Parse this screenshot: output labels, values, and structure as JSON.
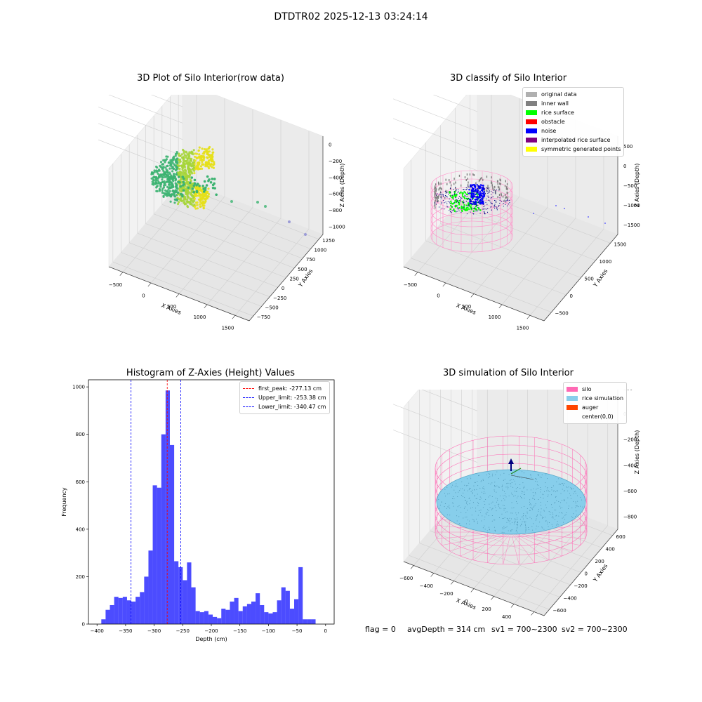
{
  "suptitle": "DTDTR02 2025-12-13 03:24:14",
  "footer": {
    "flag": "flag = 0",
    "avg": "avgDepth = 314 cm",
    "sv1": "sv1 = 700~2300",
    "sv2": "sv2 = 700~2300"
  },
  "chart_data": [
    {
      "type": "scatter",
      "title": "3D Plot of Silo Interior(row data)",
      "xlabel": "X Axies",
      "ylabel": "Y Axies",
      "zlabel": "Z Axies (Depth)",
      "xticks": [
        "−500",
        "0",
        "500",
        "1000",
        "1500"
      ],
      "yticks": [
        "−750",
        "−500",
        "−250",
        "0",
        "250",
        "500",
        "750",
        "1000",
        "1250"
      ],
      "zticks": [
        "0",
        "−200",
        "−400",
        "−600",
        "−800",
        "−1000"
      ],
      "colors": {
        "surface": "#3cb371",
        "top": "#e6e01a"
      }
    },
    {
      "type": "scatter",
      "title": "3D classify of Silo Interior",
      "xlabel": "X Axies",
      "ylabel": "Y Axies",
      "zlabel": "Z Axies (Depth)",
      "xticks": [
        "−500",
        "0",
        "500",
        "1000",
        "1500"
      ],
      "yticks": [
        "−500",
        "0",
        "500",
        "1000",
        "1500"
      ],
      "zticks": [
        "500",
        "0",
        "−500",
        "−1000",
        "−1500"
      ],
      "legend": [
        {
          "label": "original data",
          "color": "#b0b0b0"
        },
        {
          "label": "inner wall",
          "color": "#808080"
        },
        {
          "label": "rice surface",
          "color": "#00ff00"
        },
        {
          "label": "obstacle",
          "color": "#ff0000"
        },
        {
          "label": "noise",
          "color": "#0000ff"
        },
        {
          "label": "interpolated rice surface",
          "color": "#800080"
        },
        {
          "label": "symmetric generated points",
          "color": "#ffff00"
        }
      ]
    },
    {
      "type": "bar",
      "title": "Histogram of Z-Axies (Height) Values",
      "xlabel": "Depth (cm)",
      "ylabel": "Frequency",
      "xlim": [
        -415,
        15
      ],
      "ylim": [
        0,
        1030
      ],
      "xticks": [
        -400,
        -350,
        -300,
        -250,
        -200,
        -150,
        -100,
        -50,
        0
      ],
      "yticks": [
        0,
        200,
        400,
        600,
        800,
        1000
      ],
      "bin_start": -400,
      "bin_width": 7.5,
      "values": [
        0,
        20,
        60,
        80,
        115,
        110,
        115,
        100,
        95,
        115,
        135,
        200,
        310,
        585,
        575,
        800,
        985,
        755,
        265,
        240,
        185,
        260,
        155,
        55,
        50,
        55,
        40,
        30,
        25,
        65,
        60,
        95,
        110,
        55,
        75,
        85,
        95,
        130,
        80,
        50,
        45,
        50,
        100,
        155,
        140,
        65,
        105,
        240,
        20,
        20,
        20
      ],
      "color": "#0000ff",
      "vlines": [
        {
          "label": "first_peak: -277.13 cm",
          "x": -277.13,
          "color": "#ff0000"
        },
        {
          "label": "Upper_limit: -253.38 cm",
          "x": -253.38,
          "color": "#0000ff"
        },
        {
          "label": "Lower_limit: -340.47 cm",
          "x": -340.47,
          "color": "#0000ff"
        }
      ]
    },
    {
      "type": "scatter",
      "title": "3D simulation of Silo Interior",
      "xlabel": "X Axies",
      "ylabel": "Y Axies",
      "zlabel": "Z Axies (Depth)",
      "xticks": [
        "−600",
        "−400",
        "−200",
        "0",
        "200",
        "400",
        "600"
      ],
      "yticks": [
        "−600",
        "−400",
        "−200",
        "0",
        "200",
        "400",
        "600"
      ],
      "zticks": [
        "200",
        "0",
        "−200",
        "−400",
        "−600",
        "−800"
      ],
      "legend": [
        {
          "label": "silo",
          "color": "#ff69b4"
        },
        {
          "label": "rice simulation",
          "color": "#87ceeb"
        },
        {
          "label": "auger",
          "color": "#ff4500"
        },
        {
          "label": "center(0,0)",
          "color": ""
        }
      ]
    }
  ]
}
